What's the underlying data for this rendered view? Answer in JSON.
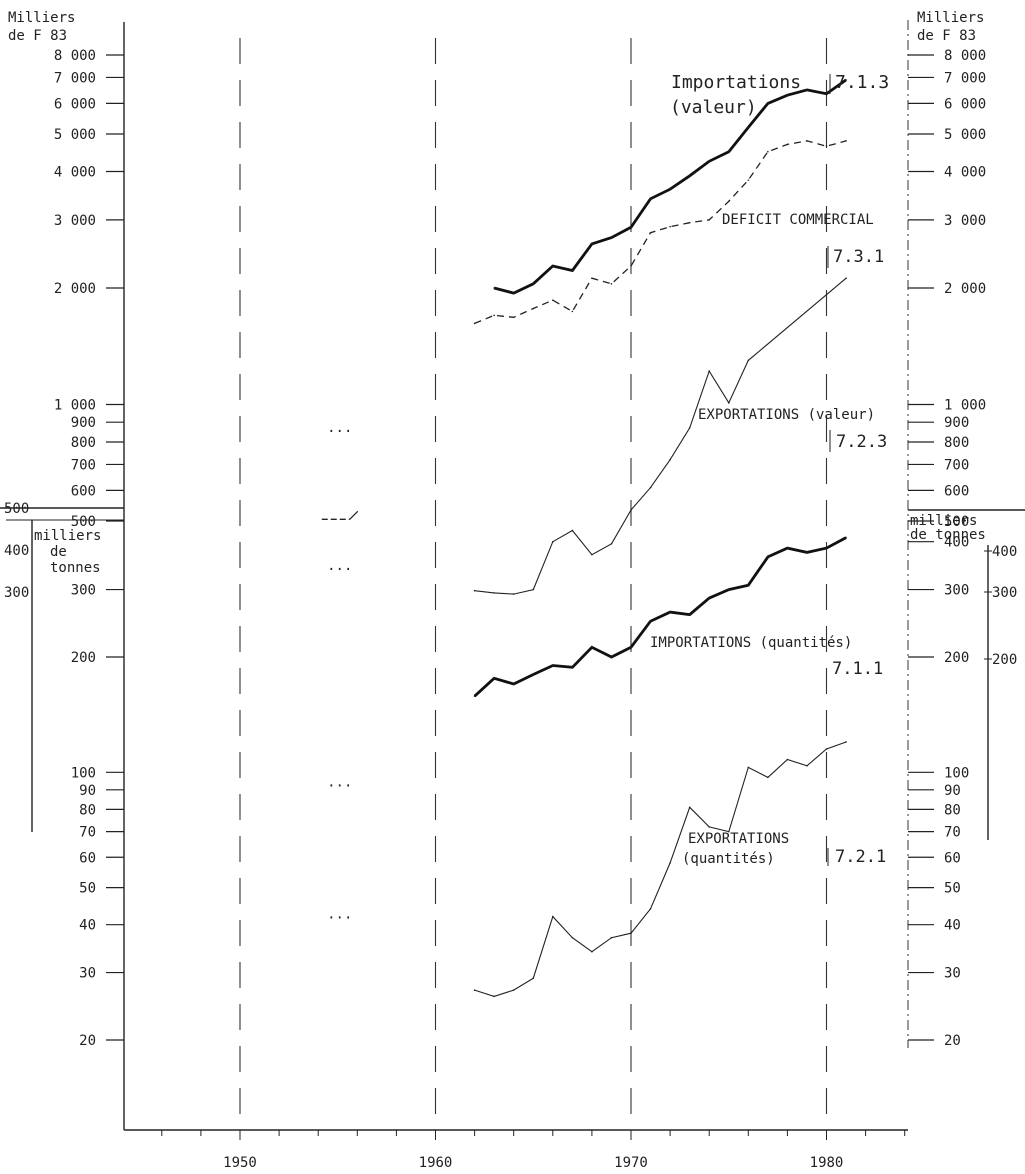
{
  "chart_data": {
    "type": "line",
    "x_axis": {
      "ticks": [
        1950,
        1960,
        1970,
        1980
      ],
      "range": [
        1944,
        1984
      ]
    },
    "upper_scale": {
      "unit_left": [
        "Milliers",
        "de F 83"
      ],
      "unit_right": [
        "Milliers",
        "de F 83"
      ],
      "scale": "log",
      "ticks_left": [
        {
          "value": 8000,
          "label": "8 000"
        },
        {
          "value": 7000,
          "label": "7 000"
        },
        {
          "value": 6000,
          "label": "6 000"
        },
        {
          "value": 5000,
          "label": "5 000"
        },
        {
          "value": 4000,
          "label": "4 000"
        },
        {
          "value": 3000,
          "label": "3 000"
        },
        {
          "value": 2000,
          "label": "2 000"
        },
        {
          "value": 1000,
          "label": "1 000"
        },
        {
          "value": 900,
          "label": "900"
        },
        {
          "value": 800,
          "label": "800"
        },
        {
          "value": 700,
          "label": "700"
        },
        {
          "value": 600,
          "label": "600"
        },
        {
          "value": 500,
          "label": "500"
        }
      ],
      "ticks_right": [
        {
          "value": 8000,
          "label": "8 000"
        },
        {
          "value": 7000,
          "label": "7 000"
        },
        {
          "value": 6000,
          "label": "6 000"
        },
        {
          "value": 5000,
          "label": "5 000"
        },
        {
          "value": 4000,
          "label": "4 000"
        },
        {
          "value": 3000,
          "label": "3 000"
        },
        {
          "value": 2000,
          "label": "2 000"
        },
        {
          "value": 1000,
          "label": "1 000"
        },
        {
          "value": 900,
          "label": "900"
        },
        {
          "value": 800,
          "label": "800"
        },
        {
          "value": 700,
          "label": "700"
        },
        {
          "value": 600,
          "label": "600"
        },
        {
          "value": 500,
          "label": "500"
        }
      ]
    },
    "lower_scale": {
      "unit_left": [
        "milliers",
        "de",
        "tonnes"
      ],
      "unit_right": [
        "milliers",
        "de tonnes"
      ],
      "scale": "log",
      "ticks_left": [
        {
          "value": 300,
          "label": "300"
        },
        {
          "value": 200,
          "label": "200"
        },
        {
          "value": 100,
          "label": "100"
        },
        {
          "value": 90,
          "label": "90"
        },
        {
          "value": 80,
          "label": "80"
        },
        {
          "value": 70,
          "label": "70"
        },
        {
          "value": 60,
          "label": "60"
        },
        {
          "value": 50,
          "label": "50"
        },
        {
          "value": 40,
          "label": "40"
        },
        {
          "value": 30,
          "label": "30"
        },
        {
          "value": 20,
          "label": "20"
        }
      ],
      "ticks_right": [
        {
          "value": 400,
          "label": "400"
        },
        {
          "value": 300,
          "label": "300"
        },
        {
          "value": 200,
          "label": "200"
        },
        {
          "value": 100,
          "label": "100"
        },
        {
          "value": 90,
          "label": "90"
        },
        {
          "value": 80,
          "label": "80"
        },
        {
          "value": 70,
          "label": "70"
        },
        {
          "value": 60,
          "label": "60"
        },
        {
          "value": 50,
          "label": "50"
        },
        {
          "value": 40,
          "label": "40"
        },
        {
          "value": 30,
          "label": "30"
        },
        {
          "value": 20,
          "label": "20"
        }
      ],
      "side_ticks_left": [
        {
          "value": 500,
          "label": "500"
        },
        {
          "value": 400,
          "label": "400"
        },
        {
          "value": 300,
          "label": "300"
        }
      ],
      "side_ticks_right": [
        {
          "value": 400,
          "label": "400"
        },
        {
          "value": 300,
          "label": "300"
        },
        {
          "value": 200,
          "label": "200"
        }
      ]
    },
    "series": [
      {
        "name": "Importations (valeur)",
        "ref": "7.1.3",
        "scale": "upper",
        "style": "thick",
        "x": [
          1963,
          1964,
          1965,
          1966,
          1967,
          1968,
          1969,
          1970,
          1971,
          1972,
          1973,
          1974,
          1975,
          1976,
          1977,
          1978,
          1979,
          1980,
          1981
        ],
        "y": [
          2000,
          1940,
          2050,
          2280,
          2220,
          2600,
          2700,
          2870,
          3400,
          3600,
          3900,
          4250,
          4500,
          5200,
          6000,
          6300,
          6500,
          6350,
          6900
        ]
      },
      {
        "name": "DEFICIT COMMERCIAL",
        "ref": "",
        "scale": "upper",
        "style": "dashed",
        "x": [
          1962,
          1963,
          1964,
          1965,
          1966,
          1967,
          1968,
          1969,
          1970,
          1971,
          1972,
          1973,
          1974,
          1975,
          1976,
          1977,
          1978,
          1979,
          1980,
          1981
        ],
        "y": [
          1620,
          1700,
          1680,
          1770,
          1860,
          1740,
          2120,
          2050,
          2280,
          2780,
          2880,
          2950,
          3000,
          3350,
          3800,
          4500,
          4700,
          4800,
          4650,
          4800
        ]
      },
      {
        "name": "EXPORTATIONS (valeur)",
        "ref": "7.2.3",
        "scale": "upper",
        "style": "thin",
        "x": [
          1955
        ],
        "y": [
          505
        ]
      },
      {
        "name": "",
        "ref": "7.3.1",
        "scale": "upper",
        "style": "thin",
        "x": [
          1971,
          1972,
          1973,
          1974,
          1975,
          1976,
          1981
        ],
        "y": [
          610,
          720,
          870,
          1220,
          1010,
          1300,
          2120
        ]
      },
      {
        "name": "EXPORTATIONS (valeur)",
        "ref": "",
        "scale": "lower",
        "style": "thin",
        "x": [
          1962,
          1963,
          1964,
          1965,
          1966,
          1967,
          1968,
          1969,
          1970
        ],
        "y": [
          298,
          294,
          292,
          300,
          400,
          428,
          370,
          395,
          484
        ]
      },
      {
        "name": "IMPORTATIONS (quantités)",
        "ref": "7.1.1",
        "scale": "lower",
        "style": "thick",
        "x": [
          1962,
          1963,
          1964,
          1965,
          1966,
          1967,
          1968,
          1969,
          1970,
          1971,
          1972,
          1973,
          1974,
          1975,
          1976,
          1977,
          1978,
          1979,
          1980,
          1981
        ],
        "y": [
          158,
          176,
          170,
          180,
          190,
          188,
          212,
          200,
          212,
          248,
          262,
          258,
          285,
          300,
          308,
          365,
          385,
          375,
          385,
          410
        ]
      },
      {
        "name": "EXPORTATIONS (quantités)",
        "ref": "7.2.1",
        "scale": "lower",
        "style": "thin",
        "x": [
          1962,
          1963,
          1964,
          1965,
          1966,
          1967,
          1968,
          1969,
          1970,
          1971,
          1972,
          1973,
          1974,
          1975,
          1976,
          1977,
          1978,
          1979,
          1980,
          1981
        ],
        "y": [
          27,
          26,
          27,
          29,
          42,
          37,
          34,
          37,
          38,
          44,
          58,
          81,
          72,
          70,
          103,
          97,
          108,
          104,
          115,
          120
        ]
      }
    ],
    "stray_marks": [
      {
        "scale": "upper",
        "x": 1955,
        "y": 870,
        "label": "..."
      },
      {
        "scale": "upper",
        "x": 1955,
        "y": 505,
        "label": ""
      },
      {
        "scale": "lower",
        "x": 1955,
        "y": 346,
        "label": "..."
      },
      {
        "scale": "lower",
        "x": 1955,
        "y": 94,
        "label": "..."
      },
      {
        "scale": "lower",
        "x": 1955,
        "y": 42.5,
        "label": "..."
      }
    ],
    "annotations": [
      {
        "text": "Importations",
        "ref": "7.1.3"
      },
      {
        "text": "(valeur)"
      },
      {
        "text": "DEFICIT COMMERCIAL"
      },
      {
        "text": "7.3.1"
      },
      {
        "text": "EXPORTATIONS (valeur)"
      },
      {
        "text": "7.2.3"
      },
      {
        "text": "IMPORTATIONS (quantités)"
      },
      {
        "text": "7.1.1"
      },
      {
        "text": "EXPORTATIONS"
      },
      {
        "text": "(quantités)"
      },
      {
        "text": "7.2.1"
      }
    ],
    "grid": "dashed vertical lines at decades",
    "legend": "none"
  }
}
